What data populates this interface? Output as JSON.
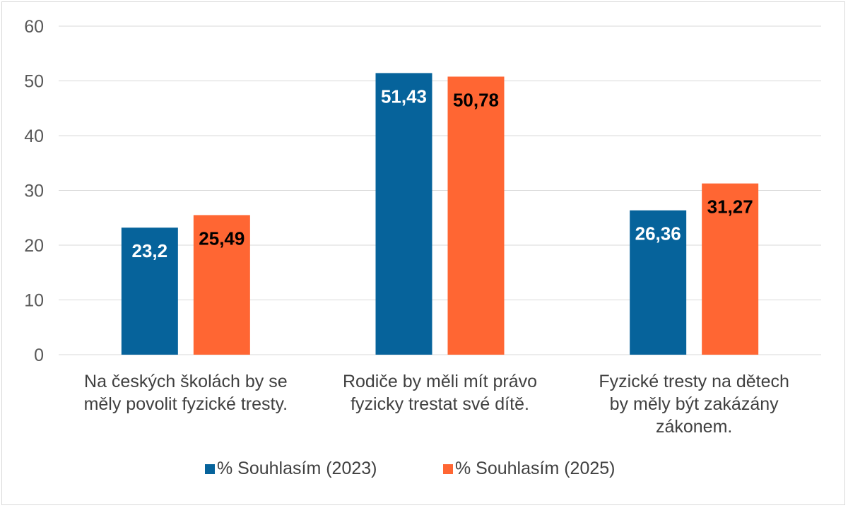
{
  "chart_data": {
    "type": "bar",
    "title": "",
    "xlabel": "",
    "ylabel": "",
    "ylim": [
      0,
      60
    ],
    "yticks": [
      0,
      10,
      20,
      30,
      40,
      50,
      60
    ],
    "grid": true,
    "legend_position": "bottom",
    "categories": [
      [
        "Na českých školách by se",
        "měly povolit fyzické tresty."
      ],
      [
        "Rodiče by měli mít právo",
        "fyzicky trestat své dítě."
      ],
      [
        "Fyzické tresty na dětech",
        "by měly být zakázány",
        "zákonem."
      ]
    ],
    "series": [
      {
        "name": "% Souhlasím (2023)",
        "color": "#06639b",
        "label_color": "#ffffff",
        "values": [
          23.2,
          51.43,
          26.36
        ],
        "labels": [
          "23,2",
          "51,43",
          "26,36"
        ]
      },
      {
        "name": "% Souhlasím (2025)",
        "color": "#ff6633",
        "label_color": "#000000",
        "values": [
          25.49,
          50.78,
          31.27
        ],
        "labels": [
          "25,49",
          "50,78",
          "31,27"
        ]
      }
    ]
  }
}
